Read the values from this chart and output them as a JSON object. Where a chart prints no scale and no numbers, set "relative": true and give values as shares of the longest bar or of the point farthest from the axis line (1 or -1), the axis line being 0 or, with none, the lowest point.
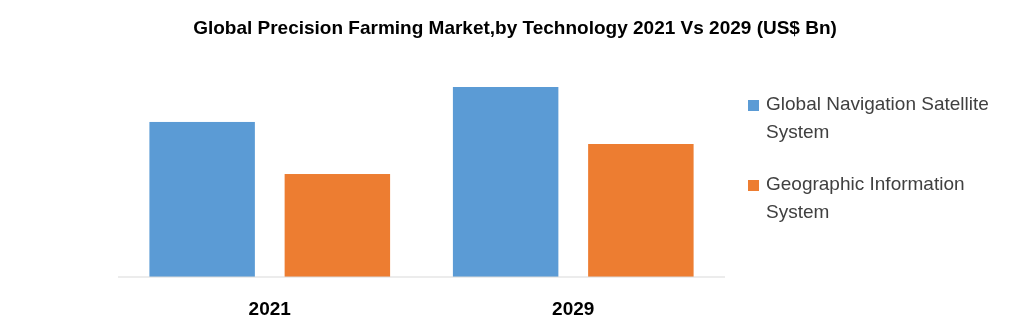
{
  "chart_data": {
    "type": "bar",
    "title": "Global Precision Farming Market,by Technology 2021 Vs 2029 (US$ Bn)",
    "categories": [
      "2021",
      "2029"
    ],
    "relative": true,
    "legend": "right",
    "series": [
      {
        "name": "Global Navigation Satellite System",
        "color": "#5b9bd5",
        "values": [
          0.816,
          1
        ]
      },
      {
        "name": "Geographic Information System",
        "color": "#ed7d31",
        "values": [
          0.542,
          0.7
        ]
      }
    ]
  }
}
